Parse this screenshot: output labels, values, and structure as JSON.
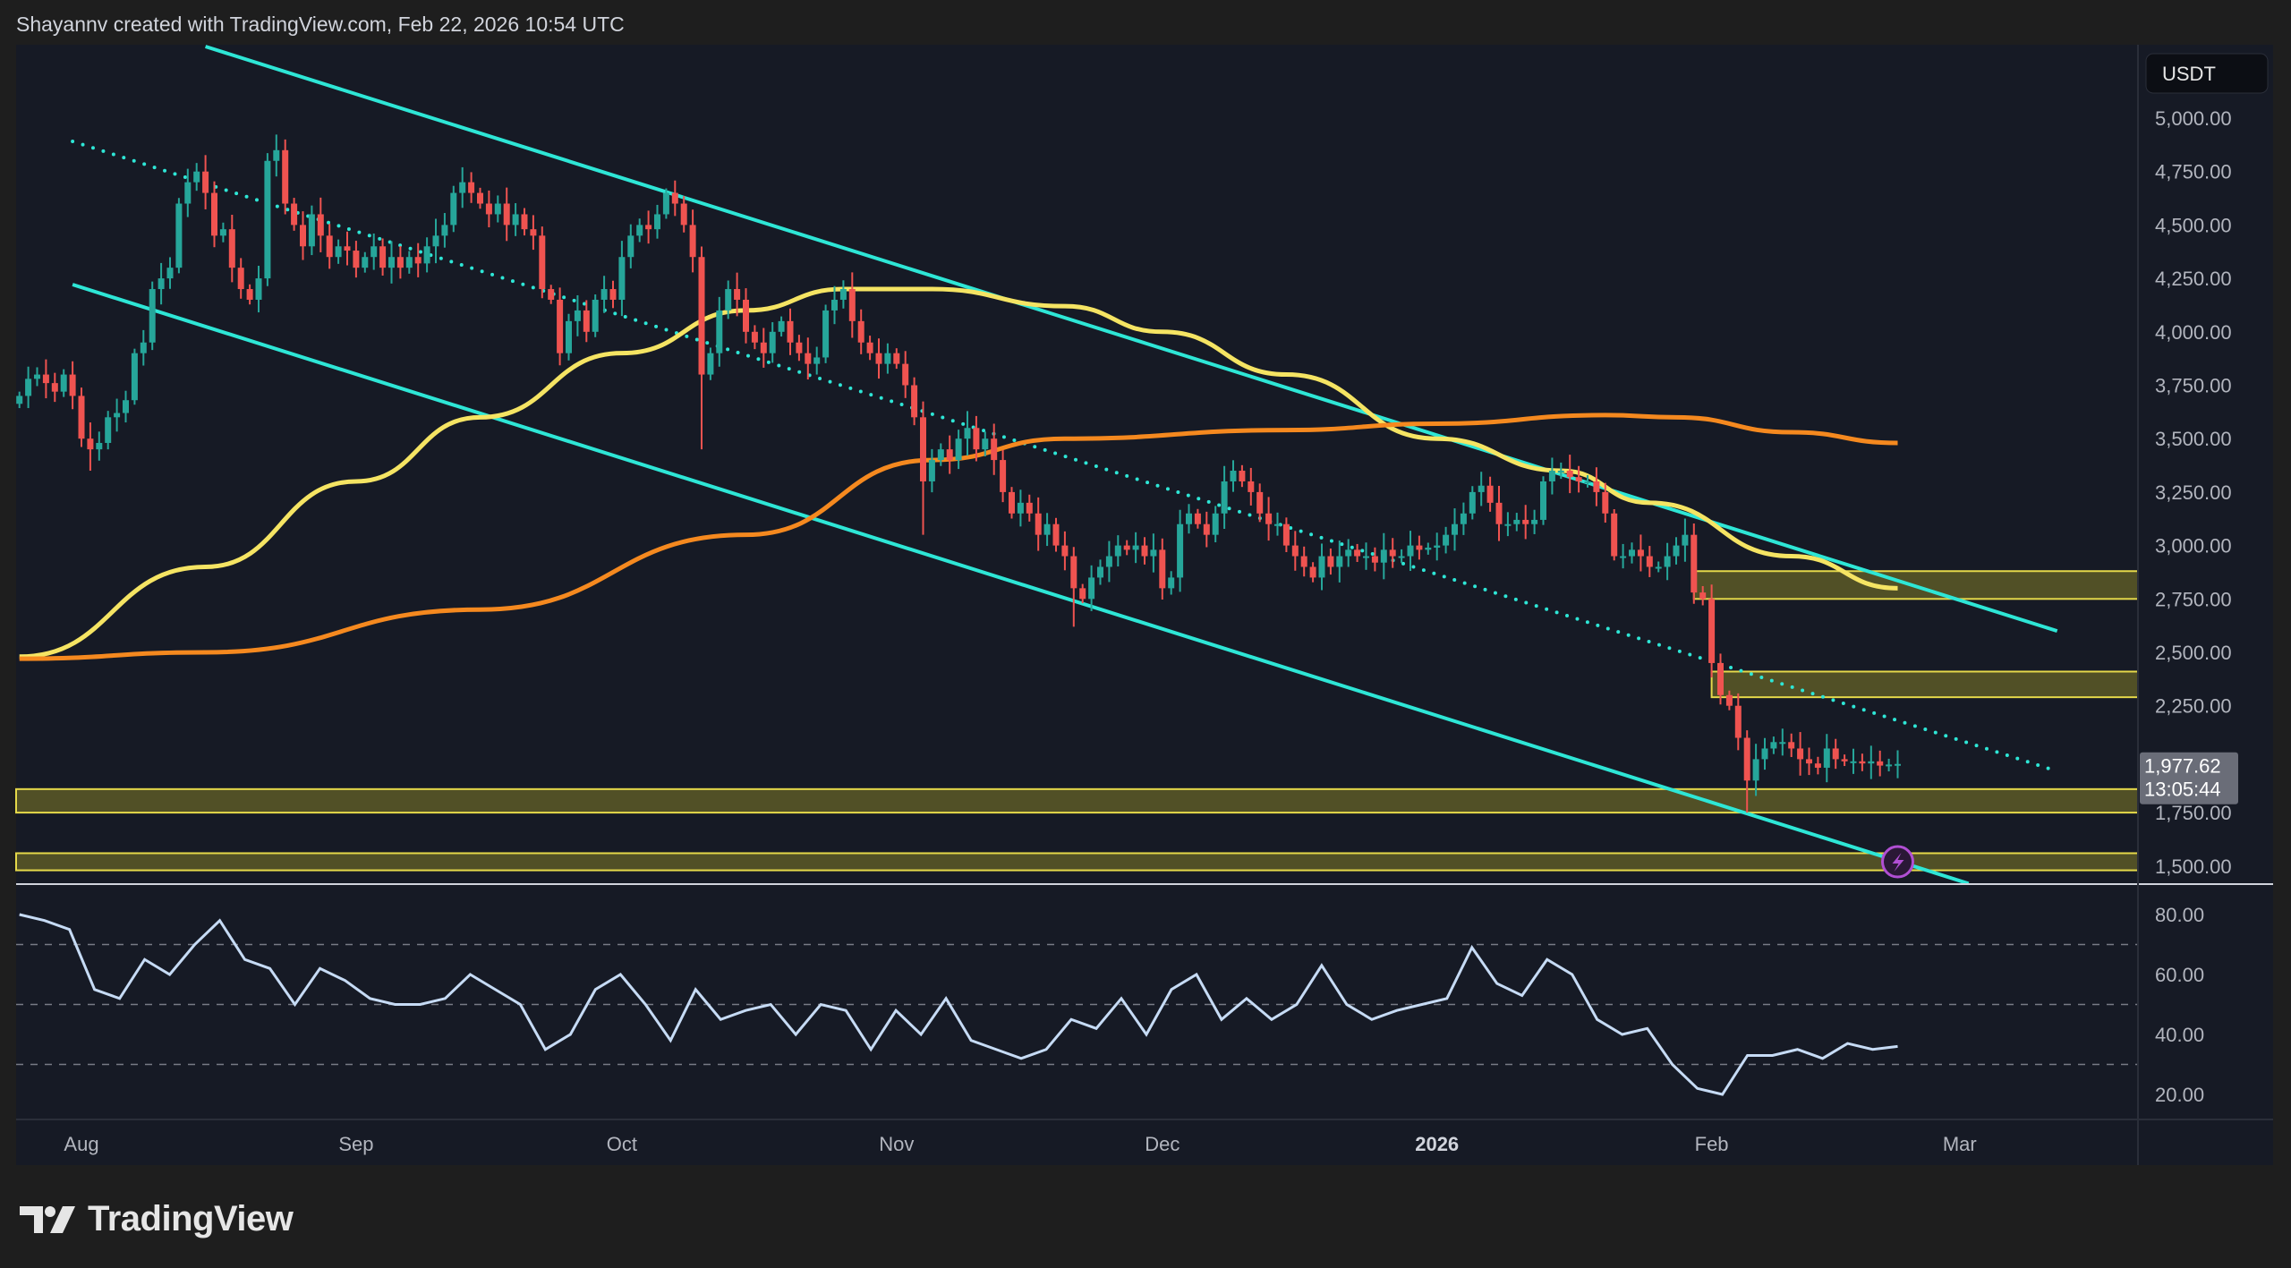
{
  "header": {
    "credit": "Shayannv created with TradingView.com, Feb 22, 2026 10:54 UTC"
  },
  "footer": {
    "logo_text": "TradingView"
  },
  "colors": {
    "background": "#161a25",
    "up": "#26a69a",
    "down": "#ef5350",
    "channel": "#2ee6d6",
    "ma_fast": "#f5e463",
    "ma_slow": "#f5891f",
    "zone_fill": "#5c5a27",
    "zone_border": "#e5d94a",
    "rsi": "#c6dbf5",
    "badge": "#b04fd3"
  },
  "price_axis": {
    "currency_label": "USDT",
    "ticks": [
      "5,000.00",
      "4,750.00",
      "4,500.00",
      "4,250.00",
      "4,000.00",
      "3,750.00",
      "3,500.00",
      "3,250.00",
      "3,000.00",
      "2,750.00",
      "2,500.00",
      "2,250.00",
      "1,750.00",
      "1,500.00"
    ],
    "last_price_label": "1,977.62",
    "countdown_label": "13:05:44"
  },
  "rsi_axis": {
    "ticks": [
      "80.00",
      "60.00",
      "40.00",
      "20.00"
    ]
  },
  "time_axis": {
    "labels": [
      {
        "text": "Aug",
        "date": "2025-08-01",
        "bold": false
      },
      {
        "text": "Sep",
        "date": "2025-09-01",
        "bold": false
      },
      {
        "text": "Oct",
        "date": "2025-10-01",
        "bold": false
      },
      {
        "text": "Nov",
        "date": "2025-11-01",
        "bold": false
      },
      {
        "text": "Dec",
        "date": "2025-12-01",
        "bold": false
      },
      {
        "text": "2026",
        "date": "2026-01-01",
        "bold": true
      },
      {
        "text": "Feb",
        "date": "2026-02-01",
        "bold": false
      },
      {
        "text": "Mar",
        "date": "2026-03-01",
        "bold": false
      }
    ]
  },
  "chart_data": [
    {
      "type": "candlestick",
      "symbol_quote": "USDT",
      "interval": "1D",
      "start_date": "2025-07-25",
      "ylim": [
        1440,
        5300
      ],
      "last_price": 1977.62,
      "closes": [
        3700,
        3780,
        3800,
        3760,
        3720,
        3800,
        3700,
        3500,
        3450,
        3480,
        3600,
        3620,
        3680,
        3900,
        3950,
        4200,
        4250,
        4300,
        4600,
        4700,
        4750,
        4650,
        4450,
        4480,
        4300,
        4200,
        4150,
        4250,
        4800,
        4850,
        4600,
        4500,
        4400,
        4550,
        4450,
        4350,
        4400,
        4380,
        4300,
        4350,
        4400,
        4300,
        4350,
        4300,
        4350,
        4320,
        4400,
        4450,
        4500,
        4650,
        4700,
        4650,
        4600,
        4550,
        4600,
        4500,
        4550,
        4480,
        4450,
        4200,
        4150,
        3900,
        4050,
        4100,
        4000,
        4150,
        4200,
        4150,
        4350,
        4450,
        4500,
        4480,
        4550,
        4650,
        4600,
        4500,
        4350,
        3800,
        3900,
        4100,
        4200,
        4150,
        4000,
        3950,
        3900,
        4000,
        4050,
        3950,
        3900,
        3850,
        3880,
        4100,
        4150,
        4200,
        4050,
        3950,
        3900,
        3850,
        3900,
        3850,
        3750,
        3600,
        3300,
        3400,
        3450,
        3400,
        3500,
        3550,
        3450,
        3500,
        3400,
        3250,
        3150,
        3200,
        3150,
        3050,
        3100,
        3000,
        2950,
        2800,
        2750,
        2850,
        2900,
        2950,
        3000,
        2980,
        3000,
        2950,
        2980,
        2800,
        2850,
        3100,
        3150,
        3100,
        3050,
        3150,
        3300,
        3350,
        3300,
        3250,
        3150,
        3100,
        3100,
        3000,
        2950,
        2900,
        2850,
        2950,
        2900,
        2950,
        2980,
        2950,
        2950,
        2920,
        2980,
        2950,
        2950,
        3000,
        2980,
        2990,
        3000,
        3050,
        3100,
        3150,
        3250,
        3280,
        3200,
        3100,
        3100,
        3120,
        3100,
        3120,
        3300,
        3350,
        3350,
        3320,
        3300,
        3300,
        3250,
        3150,
        2950,
        2950,
        2980,
        2950,
        2900,
        2900,
        2950,
        3000,
        3050,
        2780,
        2750,
        2450,
        2300,
        2250,
        2100,
        1900,
        2000,
        2050,
        2080,
        2080,
        2050,
        2000,
        1980,
        1960,
        2050,
        2000,
        1990,
        1990,
        1980,
        1990,
        1970,
        1975,
        1977.62
      ],
      "notable_lows": {
        "2025-08-02": 3350,
        "2025-10-10": 3450,
        "2025-11-04": 3050,
        "2025-11-21": 2620,
        "2026-02-05": 1750
      },
      "moving_averages": [
        {
          "color_key": "ma_fast",
          "points": [
            [
              "2025-07-25",
              2480
            ],
            [
              "2025-08-15",
              2900
            ],
            [
              "2025-09-01",
              3300
            ],
            [
              "2025-09-15",
              3600
            ],
            [
              "2025-10-01",
              3900
            ],
            [
              "2025-10-15",
              4100
            ],
            [
              "2025-10-26",
              4200
            ],
            [
              "2025-11-05",
              4200
            ],
            [
              "2025-11-20",
              4120
            ],
            [
              "2025-12-01",
              4000
            ],
            [
              "2025-12-15",
              3800
            ],
            [
              "2026-01-01",
              3500
            ],
            [
              "2026-01-15",
              3350
            ],
            [
              "2026-01-25",
              3200
            ],
            [
              "2026-02-10",
              2950
            ],
            [
              "2026-02-22",
              2800
            ]
          ]
        },
        {
          "color_key": "ma_slow",
          "points": [
            [
              "2025-07-25",
              2470
            ],
            [
              "2025-08-15",
              2500
            ],
            [
              "2025-09-15",
              2700
            ],
            [
              "2025-10-15",
              3050
            ],
            [
              "2025-11-05",
              3400
            ],
            [
              "2025-11-20",
              3500
            ],
            [
              "2025-12-15",
              3540
            ],
            [
              "2026-01-01",
              3570
            ],
            [
              "2026-01-20",
              3610
            ],
            [
              "2026-01-28",
              3600
            ],
            [
              "2026-02-10",
              3530
            ],
            [
              "2026-02-22",
              3480
            ]
          ]
        }
      ],
      "trendlines": [
        {
          "style": "solid",
          "from": [
            "2025-08-15",
            5335
          ],
          "to": [
            "2026-03-12",
            2600
          ]
        },
        {
          "style": "solid",
          "from": [
            "2025-07-31",
            4221
          ],
          "to": [
            "2026-03-02",
            1418
          ]
        },
        {
          "style": "dotted",
          "from": [
            "2025-07-31",
            4891
          ],
          "to": [
            "2026-03-12",
            1944
          ]
        }
      ],
      "zones": [
        {
          "from_date": "2026-01-30",
          "low": 2750,
          "high": 2880
        },
        {
          "from_date": "2026-02-01",
          "low": 2290,
          "high": 2410
        },
        {
          "from_date": null,
          "low": 1750,
          "high": 1860
        },
        {
          "from_date": null,
          "low": 1480,
          "high": 1560
        }
      ]
    },
    {
      "type": "line",
      "indicator": "RSI",
      "ylim": [
        10,
        90
      ],
      "levels": [
        70,
        50,
        30
      ],
      "start_date": "2025-07-25",
      "end_date": "2026-02-22",
      "values": [
        80,
        78,
        75,
        55,
        52,
        65,
        60,
        70,
        78,
        65,
        62,
        50,
        62,
        58,
        52,
        50,
        50,
        52,
        60,
        55,
        50,
        35,
        40,
        55,
        60,
        50,
        38,
        55,
        45,
        48,
        50,
        40,
        50,
        48,
        35,
        48,
        40,
        52,
        38,
        35,
        32,
        35,
        45,
        42,
        52,
        40,
        55,
        60,
        45,
        52,
        45,
        50,
        63,
        50,
        45,
        48,
        50,
        52,
        69,
        57,
        53,
        65,
        60,
        45,
        40,
        42,
        30,
        22,
        20,
        33,
        33,
        35,
        32,
        37,
        35,
        36
      ]
    }
  ]
}
